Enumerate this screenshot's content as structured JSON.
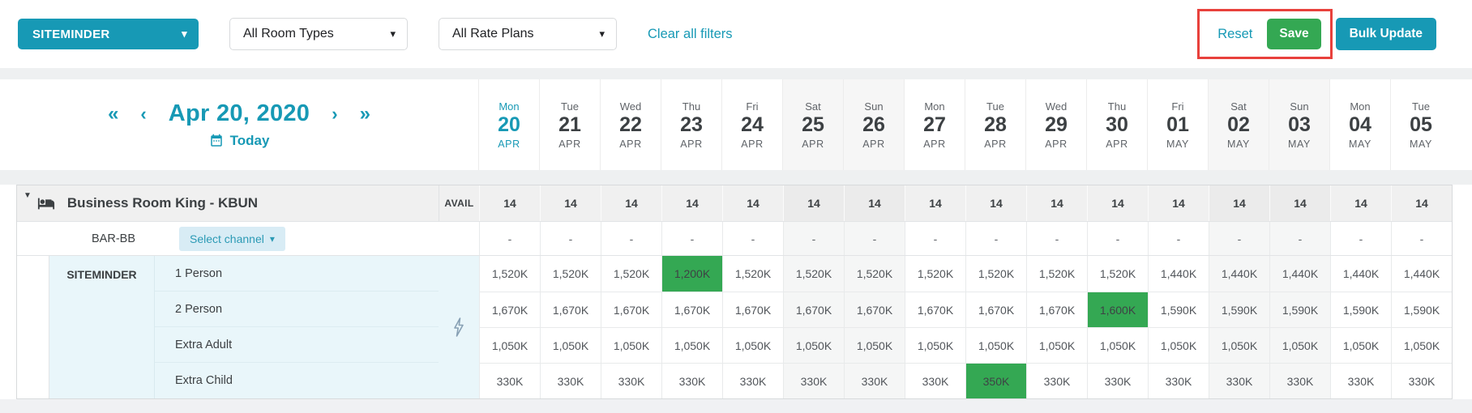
{
  "colors": {
    "accent_teal": "#1799b5",
    "save_green": "#34a853",
    "highlight_green": "#34a853",
    "annotation_red": "#e8413c",
    "channel_section_bg": "#e9f6fa"
  },
  "icons": {
    "caret_down": "▾",
    "expander_down": "▼",
    "prev_year": "«",
    "prev_day": "‹",
    "next_day": "›",
    "next_year": "»"
  },
  "topbar": {
    "channel_dropdown_label": "SITEMINDER",
    "room_types_dropdown_label": "All Room Types",
    "rate_plans_dropdown_label": "All Rate Plans",
    "clear_filters_label": "Clear all filters",
    "reset_label": "Reset",
    "save_label": "Save",
    "bulk_update_label": "Bulk Update"
  },
  "date_nav": {
    "current_date": "Apr 20, 2020",
    "today_label": "Today"
  },
  "calendar": {
    "days": [
      {
        "dow": "Mon",
        "day": "20",
        "month": "APR",
        "today": true,
        "weekend": false
      },
      {
        "dow": "Tue",
        "day": "21",
        "month": "APR",
        "today": false,
        "weekend": false
      },
      {
        "dow": "Wed",
        "day": "22",
        "month": "APR",
        "today": false,
        "weekend": false
      },
      {
        "dow": "Thu",
        "day": "23",
        "month": "APR",
        "today": false,
        "weekend": false
      },
      {
        "dow": "Fri",
        "day": "24",
        "month": "APR",
        "today": false,
        "weekend": false
      },
      {
        "dow": "Sat",
        "day": "25",
        "month": "APR",
        "today": false,
        "weekend": true
      },
      {
        "dow": "Sun",
        "day": "26",
        "month": "APR",
        "today": false,
        "weekend": true
      },
      {
        "dow": "Mon",
        "day": "27",
        "month": "APR",
        "today": false,
        "weekend": false
      },
      {
        "dow": "Tue",
        "day": "28",
        "month": "APR",
        "today": false,
        "weekend": false
      },
      {
        "dow": "Wed",
        "day": "29",
        "month": "APR",
        "today": false,
        "weekend": false
      },
      {
        "dow": "Thu",
        "day": "30",
        "month": "APR",
        "today": false,
        "weekend": false
      },
      {
        "dow": "Fri",
        "day": "01",
        "month": "MAY",
        "today": false,
        "weekend": false
      },
      {
        "dow": "Sat",
        "day": "02",
        "month": "MAY",
        "today": false,
        "weekend": true
      },
      {
        "dow": "Sun",
        "day": "03",
        "month": "MAY",
        "today": false,
        "weekend": true
      },
      {
        "dow": "Mon",
        "day": "04",
        "month": "MAY",
        "today": false,
        "weekend": false
      },
      {
        "dow": "Tue",
        "day": "05",
        "month": "MAY",
        "today": false,
        "weekend": false
      }
    ]
  },
  "table": {
    "room": {
      "name": "Business Room King - KBUN",
      "avail_label": "AVAIL",
      "avail_values": [
        "14",
        "14",
        "14",
        "14",
        "14",
        "14",
        "14",
        "14",
        "14",
        "14",
        "14",
        "14",
        "14",
        "14",
        "14",
        "14"
      ]
    },
    "rate_plan": {
      "name": "BAR-BB",
      "select_channel_label": "Select channel",
      "values": [
        "-",
        "-",
        "-",
        "-",
        "-",
        "-",
        "-",
        "-",
        "-",
        "-",
        "-",
        "-",
        "-",
        "-",
        "-",
        "-"
      ]
    },
    "channel": {
      "name": "SITEMINDER",
      "rows": [
        {
          "label": "1 Person",
          "values": [
            "1,520K",
            "1,520K",
            "1,520K",
            {
              "v": "1,200K",
              "hl": true
            },
            "1,520K",
            "1,520K",
            "1,520K",
            "1,520K",
            "1,520K",
            "1,520K",
            "1,520K",
            "1,440K",
            "1,440K",
            "1,440K",
            "1,440K",
            "1,440K"
          ]
        },
        {
          "label": "2 Person",
          "values": [
            "1,670K",
            "1,670K",
            "1,670K",
            "1,670K",
            "1,670K",
            "1,670K",
            "1,670K",
            "1,670K",
            "1,670K",
            "1,670K",
            {
              "v": "1,600K",
              "hl": true
            },
            "1,590K",
            "1,590K",
            "1,590K",
            "1,590K",
            "1,590K"
          ]
        },
        {
          "label": "Extra Adult",
          "values": [
            "1,050K",
            "1,050K",
            "1,050K",
            "1,050K",
            "1,050K",
            "1,050K",
            "1,050K",
            "1,050K",
            "1,050K",
            "1,050K",
            "1,050K",
            "1,050K",
            "1,050K",
            "1,050K",
            "1,050K",
            "1,050K"
          ]
        },
        {
          "label": "Extra Child",
          "values": [
            "330K",
            "330K",
            "330K",
            "330K",
            "330K",
            "330K",
            "330K",
            "330K",
            {
              "v": "350K",
              "hl": true
            },
            "330K",
            "330K",
            "330K",
            "330K",
            "330K",
            "330K",
            "330K"
          ]
        }
      ]
    }
  }
}
